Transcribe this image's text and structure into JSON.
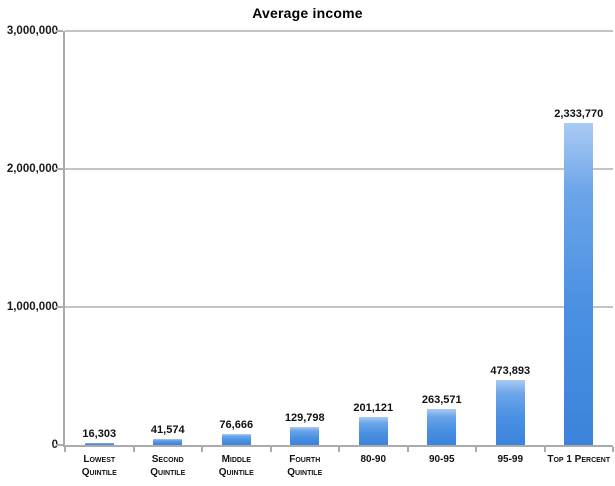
{
  "chart_data": {
    "type": "bar",
    "title": "Average income",
    "categories": [
      "Lowest Quintile",
      "Second Quintile",
      "Middle Quintile",
      "Fourth Quintile",
      "80-90",
      "90-95",
      "95-99",
      "Top 1 Percent"
    ],
    "category_label_lines": [
      [
        "Lowest",
        "Quintile"
      ],
      [
        "Second",
        "Quintile"
      ],
      [
        "Middle",
        "Quintile"
      ],
      [
        "Fourth",
        "Quintile"
      ],
      [
        "80-90"
      ],
      [
        "90-95"
      ],
      [
        "95-99"
      ],
      [
        "Top 1 Percent"
      ]
    ],
    "values": [
      16303,
      41574,
      76666,
      129798,
      201121,
      263571,
      473893,
      2333770
    ],
    "value_labels": [
      "16,303",
      "41,574",
      "76,666",
      "129,798",
      "201,121",
      "263,571",
      "473,893",
      "2,333,770"
    ],
    "xlabel": "",
    "ylabel": "",
    "ylim": [
      0,
      3000000
    ],
    "yticks": [
      0,
      1000000,
      2000000,
      3000000
    ],
    "ytick_labels": [
      "0",
      "1,000,000",
      "2,000,000",
      "3,000,000"
    ],
    "grid": "horizontal-major",
    "legend": "none",
    "colors": {
      "bar": "#4a90e2",
      "bar_top": "#a9cbf4",
      "bar_mid": "#6ba4e9",
      "bar_bottom": "#3b83db",
      "grid": "#c4c4c4",
      "axis": "#ababab",
      "text": "#111111"
    }
  }
}
